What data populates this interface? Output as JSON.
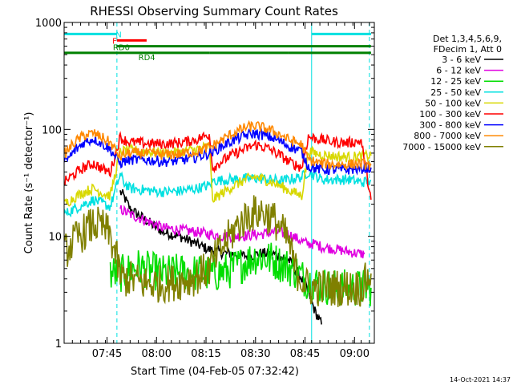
{
  "chart_data": {
    "type": "line",
    "title": "RHESSI Observing Summary Count Rates",
    "xlabel": "Start Time (04-Feb-05 07:32:42)",
    "ylabel": "Count Rate (s⁻¹ detector⁻¹)",
    "yscale": "log",
    "ylim": [
      1,
      1000
    ],
    "xlim_minutes": [
      0,
      94
    ],
    "x_ticks": [
      {
        "t": 13.0,
        "label": "07:45"
      },
      {
        "t": 28.0,
        "label": "08:00"
      },
      {
        "t": 43.0,
        "label": "08:15"
      },
      {
        "t": 58.0,
        "label": "08:30"
      },
      {
        "t": 73.0,
        "label": "08:45"
      },
      {
        "t": 88.0,
        "label": "09:00"
      }
    ],
    "y_ticks": [
      {
        "v": 1,
        "label": "1"
      },
      {
        "v": 10,
        "label": "10"
      },
      {
        "v": 100,
        "label": "100"
      },
      {
        "v": 1000,
        "label": "1000"
      }
    ],
    "legend_header": [
      "Det 1,3,4,5,6,9,",
      "FDecim 1, Att 0"
    ],
    "legend_position": "right",
    "series": [
      {
        "name": "3 - 6 keV",
        "color": "#000000",
        "x": [
          0,
          5,
          10,
          12,
          14,
          16,
          17,
          18,
          20,
          25,
          30,
          35,
          40,
          44,
          48,
          52,
          56,
          60,
          64,
          68,
          70,
          72,
          74,
          76,
          78,
          80
        ],
        "values": [
          null,
          null,
          null,
          null,
          null,
          null,
          26,
          24,
          18,
          14,
          11,
          10,
          8.5,
          7.5,
          7,
          6.8,
          6.5,
          7,
          6.8,
          6,
          5,
          4,
          3,
          2,
          1.5,
          null
        ]
      },
      {
        "name": "6 - 12 keV",
        "color": "#e000e0",
        "x": [
          17,
          20,
          25,
          30,
          35,
          40,
          44,
          48,
          52,
          56,
          60,
          64,
          68,
          72,
          74,
          76,
          78,
          80,
          83,
          86,
          88,
          91
        ],
        "values": [
          18,
          16,
          14,
          12,
          11.5,
          11,
          10.5,
          10,
          10,
          10.2,
          10.5,
          11,
          10.5,
          9,
          8.5,
          8.5,
          8,
          7.8,
          7.5,
          7.2,
          7,
          6.8
        ]
      },
      {
        "name": "12 - 25 keV",
        "color": "#00dd00",
        "x": [
          14,
          18,
          22,
          26,
          30,
          34,
          38,
          42,
          46,
          50,
          54,
          58,
          62,
          66,
          70,
          72,
          74,
          78,
          82,
          86,
          90,
          93
        ],
        "values": [
          4.5,
          4.5,
          5.2,
          4.8,
          4.5,
          4.6,
          4.6,
          4.5,
          4.5,
          4.8,
          5.5,
          6.5,
          6.2,
          5.5,
          4.8,
          4.2,
          3.8,
          3.5,
          3.3,
          3.3,
          3.3,
          3.3
        ]
      },
      {
        "name": "25 - 50 keV",
        "color": "#00e0e0",
        "x": [
          0,
          3,
          6,
          9,
          12,
          14,
          17,
          18,
          20,
          25,
          30,
          35,
          40,
          44,
          45,
          50,
          55,
          58,
          62,
          66,
          68,
          72,
          74,
          78,
          82,
          86,
          90,
          93
        ],
        "values": [
          16,
          18,
          20,
          22,
          20,
          19,
          38,
          32,
          28,
          27,
          26,
          26.5,
          28,
          30,
          33,
          34,
          34.5,
          35,
          34,
          33,
          34,
          36,
          40,
          34,
          34,
          34,
          32,
          33
        ]
      },
      {
        "name": "50 - 100 keV",
        "color": "#d8d800",
        "x": [
          0,
          3,
          6,
          9,
          12,
          14,
          17,
          20,
          25,
          30,
          35,
          40,
          44,
          45,
          50,
          55,
          58,
          62,
          66,
          68,
          72,
          74,
          78,
          82,
          86,
          90,
          93
        ],
        "values": [
          20,
          23,
          26,
          28,
          25,
          24,
          62,
          64,
          62,
          60,
          61,
          65,
          70,
          22,
          28,
          34,
          36,
          33,
          29,
          27,
          24,
          62,
          58,
          56,
          55,
          56,
          57
        ]
      },
      {
        "name": "100 - 300 keV",
        "color": "#ff0000",
        "x": [
          0,
          3,
          6,
          9,
          12,
          14,
          17,
          18,
          20,
          25,
          30,
          35,
          40,
          44,
          45,
          50,
          55,
          58,
          62,
          66,
          68,
          72,
          74,
          78,
          82,
          86,
          90,
          93
        ],
        "values": [
          32,
          38,
          44,
          48,
          42,
          40,
          85,
          80,
          76,
          74,
          73,
          75,
          80,
          90,
          44,
          56,
          66,
          72,
          66,
          56,
          50,
          44,
          85,
          80,
          76,
          75,
          78,
          22
        ]
      },
      {
        "name": "300 - 800 keV",
        "color": "#0000ff",
        "x": [
          0,
          3,
          6,
          9,
          12,
          14,
          17,
          18,
          20,
          25,
          30,
          35,
          40,
          44,
          45,
          50,
          55,
          58,
          62,
          66,
          68,
          72,
          74,
          78,
          82,
          86,
          90,
          93
        ],
        "values": [
          48,
          62,
          76,
          82,
          72,
          65,
          48,
          50,
          52,
          52,
          50,
          51,
          55,
          60,
          62,
          76,
          88,
          92,
          86,
          76,
          70,
          62,
          45,
          42,
          42,
          42,
          43,
          44
        ]
      },
      {
        "name": "800 - 7000 keV",
        "color": "#ff8800",
        "x": [
          0,
          3,
          6,
          9,
          12,
          14,
          17,
          18,
          20,
          25,
          30,
          35,
          40,
          44,
          45,
          50,
          55,
          58,
          62,
          66,
          68,
          72,
          74,
          78,
          82,
          86,
          90,
          93
        ],
        "values": [
          58,
          75,
          88,
          92,
          82,
          75,
          55,
          58,
          60,
          60,
          58,
          59,
          62,
          68,
          70,
          88,
          104,
          108,
          100,
          88,
          80,
          72,
          52,
          48,
          47,
          47,
          48,
          46
        ]
      },
      {
        "name": "7000 - 15000 keV",
        "color": "#808000",
        "x": [
          0,
          3,
          6,
          9,
          12,
          14,
          16,
          17,
          18,
          20,
          25,
          30,
          35,
          40,
          44,
          48,
          52,
          56,
          60,
          64,
          68,
          70,
          72,
          74,
          78,
          82,
          86,
          90,
          93
        ],
        "values": [
          7,
          9,
          11,
          13,
          12,
          10,
          6,
          4.2,
          4,
          4,
          3.6,
          3.6,
          3.8,
          4.2,
          5,
          8,
          12,
          16,
          17,
          14,
          9,
          5,
          4,
          3.3,
          3.3,
          3.3,
          3.3,
          3.3,
          4.5
        ]
      }
    ],
    "flag_bars": [
      {
        "label": "N",
        "color": "#00e0e0",
        "level": 780,
        "segments": [
          [
            0,
            16
          ],
          [
            75,
            93
          ]
        ]
      },
      {
        "label": "F",
        "color": "#ff0000",
        "level": 680,
        "segments": [
          [
            16,
            25
          ]
        ]
      },
      {
        "label": "RD0",
        "color": "#008000",
        "level": 600,
        "segments": [
          [
            16,
            93
          ]
        ]
      },
      {
        "label": "RD4",
        "color": "#008000",
        "level": 520,
        "segments": [
          [
            0,
            17
          ],
          [
            17,
            44
          ],
          [
            44,
            68
          ],
          [
            68,
            93
          ]
        ]
      }
    ],
    "vertical_markers": [
      {
        "t": 16.0,
        "color": "#00e0e0",
        "style": "dashed"
      },
      {
        "t": 75.0,
        "color": "#00e0e0",
        "style": "solid"
      },
      {
        "t": 92.5,
        "color": "#00e0e0",
        "style": "dashed"
      },
      {
        "t": 94.0,
        "color": "#00e0e0",
        "style": "solid"
      }
    ],
    "footer_date": "14-Oct-2021 14:37"
  }
}
